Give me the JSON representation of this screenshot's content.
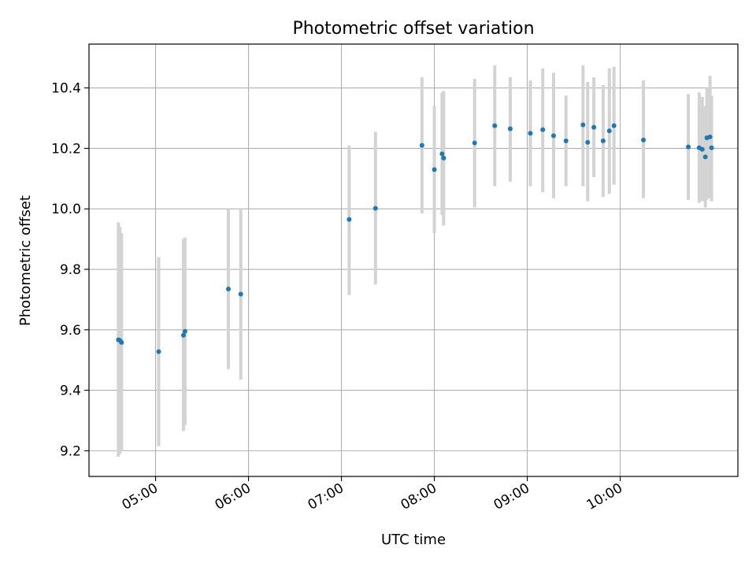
{
  "chart_data": {
    "type": "scatter",
    "title": "Photometric offset variation",
    "xlabel": "UTC time",
    "ylabel": "Photometric offset",
    "x_unit": "UTC time (HH:MM)",
    "xlim": [
      "04:17",
      "11:16"
    ],
    "ylim": [
      9.115,
      10.545
    ],
    "x_ticks": [
      "05:00",
      "06:00",
      "07:00",
      "08:00",
      "09:00",
      "10:00"
    ],
    "y_ticks": [
      9.2,
      9.4,
      9.6,
      9.8,
      10.0,
      10.2,
      10.4
    ],
    "y_tick_labels": [
      "9.2",
      "9.4",
      "9.6",
      "9.8",
      "10.0",
      "10.2",
      "10.4"
    ],
    "grid": true,
    "colors": {
      "point": "#1f77b4",
      "errorbar": "#d3d3d3",
      "grid": "#b0b0b0"
    },
    "points": [
      {
        "x": "04:36",
        "y": 9.567,
        "lo": 9.18,
        "hi": 9.955
      },
      {
        "x": "04:37",
        "y": 9.565,
        "lo": 9.19,
        "hi": 9.94
      },
      {
        "x": "04:38",
        "y": 9.558,
        "lo": 9.2,
        "hi": 9.92
      },
      {
        "x": "05:02",
        "y": 9.528,
        "lo": 9.215,
        "hi": 9.84
      },
      {
        "x": "05:18",
        "y": 9.582,
        "lo": 9.265,
        "hi": 9.9
      },
      {
        "x": "05:19",
        "y": 9.595,
        "lo": 9.285,
        "hi": 9.905
      },
      {
        "x": "05:47",
        "y": 9.735,
        "lo": 9.47,
        "hi": 10.0
      },
      {
        "x": "05:55",
        "y": 9.718,
        "lo": 9.435,
        "hi": 10.0
      },
      {
        "x": "07:05",
        "y": 9.965,
        "lo": 9.715,
        "hi": 10.21
      },
      {
        "x": "07:22",
        "y": 10.002,
        "lo": 9.75,
        "hi": 10.255
      },
      {
        "x": "07:52",
        "y": 10.21,
        "lo": 9.985,
        "hi": 10.435
      },
      {
        "x": "08:00",
        "y": 10.13,
        "lo": 9.92,
        "hi": 10.34
      },
      {
        "x": "08:05",
        "y": 10.182,
        "lo": 9.98,
        "hi": 10.385
      },
      {
        "x": "08:06",
        "y": 10.168,
        "lo": 9.945,
        "hi": 10.39
      },
      {
        "x": "08:26",
        "y": 10.218,
        "lo": 10.005,
        "hi": 10.43
      },
      {
        "x": "08:39",
        "y": 10.275,
        "lo": 10.075,
        "hi": 10.475
      },
      {
        "x": "08:49",
        "y": 10.265,
        "lo": 10.09,
        "hi": 10.435
      },
      {
        "x": "09:02",
        "y": 10.25,
        "lo": 10.075,
        "hi": 10.425
      },
      {
        "x": "09:10",
        "y": 10.262,
        "lo": 10.055,
        "hi": 10.465
      },
      {
        "x": "09:17",
        "y": 10.242,
        "lo": 10.035,
        "hi": 10.45
      },
      {
        "x": "09:25",
        "y": 10.225,
        "lo": 10.075,
        "hi": 10.375
      },
      {
        "x": "09:36",
        "y": 10.278,
        "lo": 10.075,
        "hi": 10.475
      },
      {
        "x": "09:39",
        "y": 10.22,
        "lo": 10.025,
        "hi": 10.42
      },
      {
        "x": "09:43",
        "y": 10.27,
        "lo": 10.105,
        "hi": 10.435
      },
      {
        "x": "09:49",
        "y": 10.225,
        "lo": 10.04,
        "hi": 10.41
      },
      {
        "x": "09:53",
        "y": 10.258,
        "lo": 10.05,
        "hi": 10.465
      },
      {
        "x": "09:56",
        "y": 10.275,
        "lo": 10.08,
        "hi": 10.47
      },
      {
        "x": "10:15",
        "y": 10.228,
        "lo": 10.035,
        "hi": 10.425
      },
      {
        "x": "10:44",
        "y": 10.205,
        "lo": 10.03,
        "hi": 10.38
      },
      {
        "x": "10:51",
        "y": 10.202,
        "lo": 10.02,
        "hi": 10.385
      },
      {
        "x": "10:53",
        "y": 10.197,
        "lo": 10.025,
        "hi": 10.37
      },
      {
        "x": "10:55",
        "y": 10.172,
        "lo": 10.005,
        "hi": 10.34
      },
      {
        "x": "10:56",
        "y": 10.235,
        "lo": 10.03,
        "hi": 10.4
      },
      {
        "x": "10:58",
        "y": 10.238,
        "lo": 10.035,
        "hi": 10.44
      },
      {
        "x": "10:59",
        "y": 10.202,
        "lo": 10.025,
        "hi": 10.375
      }
    ]
  }
}
